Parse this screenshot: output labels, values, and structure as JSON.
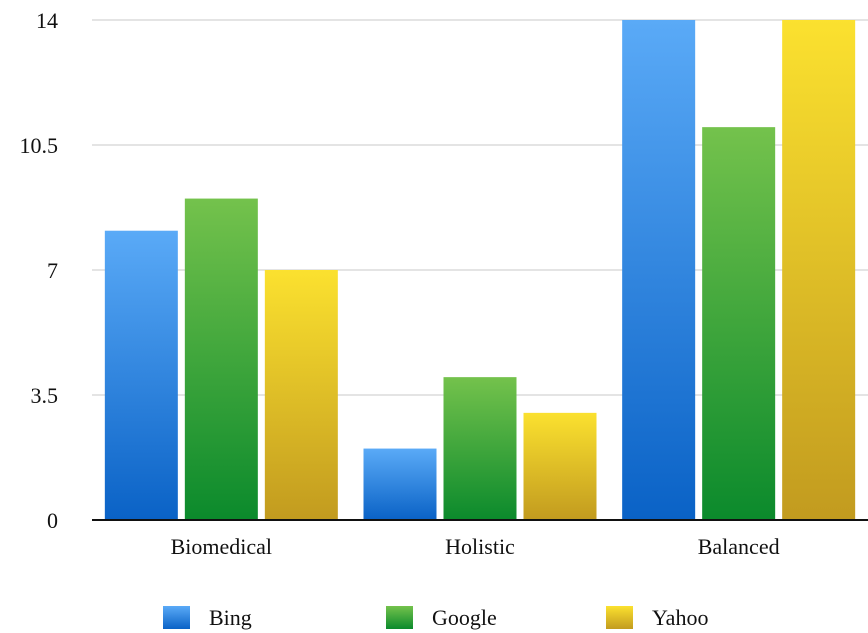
{
  "chart_data": {
    "type": "bar",
    "categories": [
      "Biomedical",
      "Holistic",
      "Balanced"
    ],
    "series": [
      {
        "name": "Bing",
        "values": [
          8.1,
          2.0,
          14.0
        ]
      },
      {
        "name": "Google",
        "values": [
          9.0,
          4.0,
          11.0
        ]
      },
      {
        "name": "Yahoo",
        "values": [
          7.0,
          3.0,
          14.0
        ]
      }
    ],
    "ylim": [
      0,
      14
    ],
    "yticks": [
      "0",
      "3.5",
      "7",
      "10.5",
      "14"
    ],
    "ytick_values": [
      0,
      3.5,
      7,
      10.5,
      14
    ],
    "grid": true,
    "legend": "bottom",
    "colors": [
      {
        "top": "#5aaaf7",
        "bottom": "#0a62c6"
      },
      {
        "top": "#74c24c",
        "bottom": "#0b8a2c"
      },
      {
        "top": "#fbe12f",
        "bottom": "#c29b1f"
      }
    ]
  }
}
